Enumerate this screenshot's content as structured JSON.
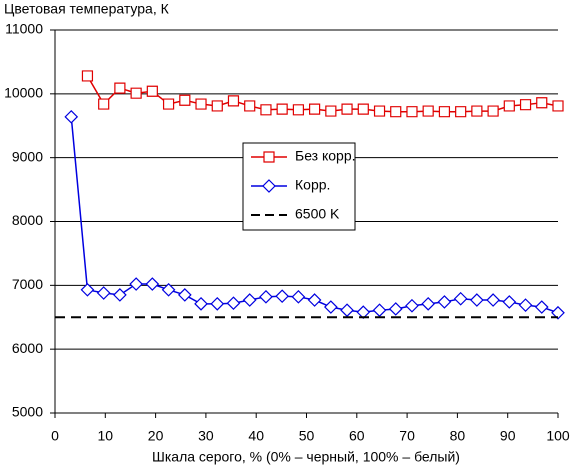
{
  "chart_data": {
    "type": "line",
    "y_axis_title": "Цветовая температура, К",
    "x_axis_title": "Шкала серого, % (0% – черный, 100% – белый)",
    "x": [
      3.23,
      6.45,
      9.68,
      12.9,
      16.13,
      19.35,
      22.58,
      25.81,
      29.03,
      32.26,
      35.48,
      38.71,
      41.94,
      45.16,
      48.39,
      51.61,
      54.84,
      58.06,
      61.29,
      64.52,
      67.74,
      70.97,
      74.19,
      77.42,
      80.65,
      83.87,
      87.1,
      90.32,
      93.55,
      96.77,
      100
    ],
    "series": [
      {
        "name": "Без корр.",
        "color": "#e00000",
        "marker": "square",
        "values": [
          null,
          10280,
          9840,
          10090,
          10010,
          10040,
          9840,
          9900,
          9840,
          9810,
          9890,
          9810,
          9750,
          9760,
          9750,
          9760,
          9730,
          9760,
          9760,
          9730,
          9720,
          9720,
          9730,
          9720,
          9720,
          9730,
          9730,
          9810,
          9830,
          9860,
          9810
        ]
      },
      {
        "name": "Корр.",
        "color": "#0000e0",
        "marker": "diamond",
        "values": [
          9640,
          6930,
          6880,
          6850,
          7020,
          7020,
          6930,
          6850,
          6710,
          6710,
          6720,
          6770,
          6820,
          6830,
          6820,
          6770,
          6660,
          6610,
          6580,
          6610,
          6630,
          6680,
          6710,
          6740,
          6790,
          6770,
          6770,
          6740,
          6690,
          6660,
          6570
        ]
      },
      {
        "name": "6500 K",
        "color": "#000000",
        "dashed": true,
        "x": [
          0,
          100
        ],
        "values": [
          6500,
          6500
        ]
      }
    ],
    "xlim": [
      0,
      100
    ],
    "xticks": [
      0,
      10,
      20,
      30,
      40,
      50,
      60,
      70,
      80,
      90,
      100
    ],
    "ylim": [
      5000,
      11000
    ],
    "yticks": [
      5000,
      6000,
      7000,
      8000,
      9000,
      10000,
      11000
    ],
    "grid": true,
    "legend": "center-right"
  }
}
